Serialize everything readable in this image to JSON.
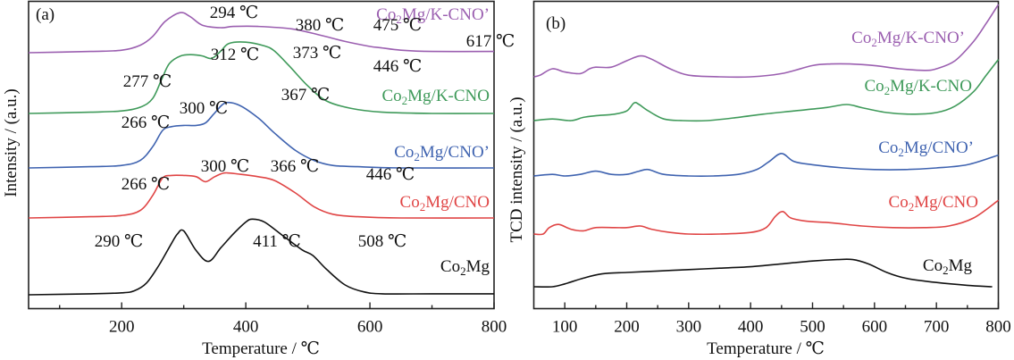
{
  "chart_data": [
    {
      "type": "line",
      "panel_label": "(a)",
      "title": "",
      "xlabel": "Temperature / ℃",
      "ylabel": "Intensity / (a.u.)",
      "xlim": [
        50,
        800
      ],
      "x_ticks": [
        200,
        400,
        600,
        800
      ],
      "x_minor_ticks": [
        100,
        300,
        500,
        700
      ],
      "y_ticks": [],
      "grid": false,
      "offset_stacked": true,
      "series": [
        {
          "name": "Co₂Mg/K-CNO’",
          "label_main": "Co",
          "label_sub": "2",
          "label_rest": "Mg/K-CNO’",
          "color": "#9b5fb0",
          "x": [
            50,
            150,
            200,
            230,
            250,
            270,
            294,
            310,
            330,
            360,
            380,
            420,
            475,
            520,
            560,
            600,
            617,
            650,
            700,
            800
          ],
          "y": [
            0.0,
            0.01,
            0.02,
            0.06,
            0.13,
            0.25,
            0.32,
            0.29,
            0.22,
            0.2,
            0.21,
            0.21,
            0.19,
            0.14,
            0.09,
            0.05,
            0.04,
            0.02,
            0.01,
            0.01
          ]
        },
        {
          "name": "Co₂Mg/K-CNO",
          "label_main": "Co",
          "label_sub": "2",
          "label_rest": "Mg/K-CNO",
          "color": "#3f9a5a",
          "x": [
            50,
            150,
            200,
            230,
            250,
            265,
            277,
            295,
            312,
            330,
            345,
            360,
            373,
            400,
            430,
            446,
            470,
            500,
            530,
            570,
            620,
            700,
            800
          ],
          "y": [
            0.0,
            0.01,
            0.02,
            0.05,
            0.12,
            0.28,
            0.4,
            0.46,
            0.47,
            0.46,
            0.44,
            0.5,
            0.56,
            0.57,
            0.54,
            0.5,
            0.38,
            0.22,
            0.1,
            0.04,
            0.01,
            0.0,
            0.0
          ]
        },
        {
          "name": "Co₂Mg/CNO’",
          "label_main": "Co",
          "label_sub": "2",
          "label_rest": "Mg/CNO’",
          "color": "#3f63b0",
          "x": [
            50,
            150,
            200,
            230,
            250,
            266,
            280,
            300,
            320,
            335,
            350,
            367,
            390,
            420,
            446,
            480,
            510,
            540,
            580,
            650,
            800
          ],
          "y": [
            0.0,
            0.01,
            0.02,
            0.06,
            0.17,
            0.3,
            0.33,
            0.34,
            0.34,
            0.36,
            0.44,
            0.52,
            0.5,
            0.4,
            0.28,
            0.14,
            0.06,
            0.02,
            0.01,
            0.0,
            0.0
          ]
        },
        {
          "name": "Co₂Mg/CNO",
          "label_main": "Co",
          "label_sub": "2",
          "label_rest": "Mg/CNO",
          "color": "#e04545",
          "x": [
            50,
            150,
            200,
            230,
            250,
            266,
            280,
            300,
            320,
            335,
            350,
            366,
            390,
            420,
            446,
            480,
            510,
            540,
            580,
            650,
            800
          ],
          "y": [
            0.0,
            0.01,
            0.02,
            0.06,
            0.18,
            0.32,
            0.34,
            0.34,
            0.33,
            0.29,
            0.33,
            0.36,
            0.35,
            0.33,
            0.3,
            0.2,
            0.09,
            0.03,
            0.01,
            0.0,
            0.0
          ]
        },
        {
          "name": "Co₂Mg",
          "label_main": "Co",
          "label_sub": "2",
          "label_rest": "Mg",
          "color": "#111111",
          "x": [
            50,
            150,
            200,
            220,
            240,
            260,
            280,
            290,
            300,
            320,
            340,
            360,
            380,
            400,
            411,
            430,
            460,
            490,
            508,
            530,
            560,
            590,
            620,
            700,
            800
          ],
          "y": [
            0.0,
            0.01,
            0.02,
            0.04,
            0.12,
            0.3,
            0.52,
            0.62,
            0.65,
            0.45,
            0.34,
            0.48,
            0.62,
            0.74,
            0.77,
            0.74,
            0.6,
            0.46,
            0.4,
            0.26,
            0.1,
            0.03,
            0.01,
            0.01,
            0.01
          ]
        }
      ],
      "annotations": [
        {
          "series": "Co₂Mg/K-CNO’",
          "text": "294 ℃"
        },
        {
          "series": "Co₂Mg/K-CNO’",
          "text": "380 ℃"
        },
        {
          "series": "Co₂Mg/K-CNO’",
          "text": "475 ℃"
        },
        {
          "series": "Co₂Mg/K-CNO’",
          "text": "617 ℃"
        },
        {
          "series": "Co₂Mg/K-CNO",
          "text": "277 ℃"
        },
        {
          "series": "Co₂Mg/K-CNO",
          "text": "312 ℃"
        },
        {
          "series": "Co₂Mg/K-CNO",
          "text": "373 ℃"
        },
        {
          "series": "Co₂Mg/K-CNO",
          "text": "446 ℃"
        },
        {
          "series": "Co₂Mg/CNO’",
          "text": "266 ℃"
        },
        {
          "series": "Co₂Mg/CNO’",
          "text": "300 ℃"
        },
        {
          "series": "Co₂Mg/CNO’",
          "text": "367 ℃"
        },
        {
          "series": "Co₂Mg/CNO",
          "text": "266 ℃"
        },
        {
          "series": "Co₂Mg/CNO",
          "text": "300 ℃"
        },
        {
          "series": "Co₂Mg/CNO",
          "text": "366 ℃"
        },
        {
          "series": "Co₂Mg/CNO",
          "text": "446 ℃"
        },
        {
          "series": "Co₂Mg",
          "text": "290 ℃"
        },
        {
          "series": "Co₂Mg",
          "text": "411 ℃"
        },
        {
          "series": "Co₂Mg",
          "text": "508 ℃"
        }
      ]
    },
    {
      "type": "line",
      "panel_label": "(b)",
      "title": "",
      "xlabel": "Temperature / ℃",
      "ylabel": "TCD intensity / (a.u.)",
      "xlim": [
        50,
        800
      ],
      "x_ticks": [
        100,
        200,
        300,
        400,
        500,
        600,
        700,
        800
      ],
      "x_minor_ticks": [
        150,
        250,
        350,
        450,
        550,
        650,
        750
      ],
      "y_ticks": [],
      "grid": false,
      "offset_stacked": true,
      "series": [
        {
          "name": "Co₂Mg/K-CNO’",
          "label_main": "Co",
          "label_sub": "2",
          "label_rest": "Mg/K-CNO’",
          "color": "#9b5fb0",
          "x": [
            50,
            60,
            80,
            100,
            125,
            140,
            150,
            175,
            200,
            222,
            240,
            270,
            300,
            350,
            400,
            450,
            500,
            530,
            560,
            600,
            640,
            680,
            700,
            730,
            760,
            780,
            800
          ],
          "y": [
            0.0,
            0.01,
            0.05,
            0.03,
            0.02,
            0.05,
            0.06,
            0.06,
            0.1,
            0.13,
            0.11,
            0.05,
            0.01,
            0.0,
            0.0,
            0.02,
            0.07,
            0.08,
            0.08,
            0.07,
            0.05,
            0.04,
            0.05,
            0.1,
            0.22,
            0.33,
            0.45
          ]
        },
        {
          "name": "Co₂Mg/K-CNO",
          "label_main": "Co",
          "label_sub": "2",
          "label_rest": "Mg/K-CNO",
          "color": "#3f9a5a",
          "x": [
            50,
            80,
            110,
            130,
            150,
            180,
            200,
            212,
            220,
            235,
            260,
            290,
            330,
            380,
            420,
            470,
            520,
            555,
            580,
            620,
            660,
            700,
            730,
            760,
            780,
            800
          ],
          "y": [
            0.0,
            0.01,
            0.0,
            0.02,
            0.03,
            0.04,
            0.06,
            0.11,
            0.1,
            0.06,
            0.01,
            0.0,
            0.0,
            0.02,
            0.04,
            0.06,
            0.08,
            0.1,
            0.08,
            0.05,
            0.04,
            0.05,
            0.09,
            0.18,
            0.28,
            0.38
          ]
        },
        {
          "name": "Co₂Mg/CNO’",
          "label_main": "Co",
          "label_sub": "2",
          "label_rest": "Mg/CNO’",
          "color": "#3f63b0",
          "x": [
            50,
            80,
            100,
            125,
            150,
            175,
            200,
            220,
            235,
            260,
            300,
            340,
            380,
            410,
            430,
            450,
            470,
            500,
            550,
            600,
            650,
            700,
            750,
            800
          ],
          "y": [
            0.0,
            0.01,
            0.0,
            0.01,
            0.03,
            0.01,
            0.01,
            0.03,
            0.04,
            0.01,
            0.0,
            0.0,
            0.01,
            0.04,
            0.09,
            0.14,
            0.09,
            0.07,
            0.05,
            0.04,
            0.04,
            0.05,
            0.07,
            0.13
          ]
        },
        {
          "name": "Co₂Mg/CNO",
          "label_main": "Co",
          "label_sub": "2",
          "label_rest": "Mg/CNO",
          "color": "#e04545",
          "x": [
            50,
            65,
            75,
            90,
            110,
            130,
            150,
            180,
            200,
            222,
            240,
            270,
            300,
            350,
            400,
            425,
            440,
            452,
            465,
            490,
            530,
            580,
            630,
            680,
            720,
            760,
            800
          ],
          "y": [
            0.0,
            0.0,
            0.04,
            0.06,
            0.03,
            0.02,
            0.04,
            0.04,
            0.04,
            0.05,
            0.03,
            0.01,
            0.0,
            0.0,
            0.01,
            0.04,
            0.11,
            0.14,
            0.1,
            0.08,
            0.07,
            0.05,
            0.04,
            0.04,
            0.05,
            0.1,
            0.21
          ]
        },
        {
          "name": "Co₂Mg",
          "label_main": "Co",
          "label_sub": "2",
          "label_rest": "Mg",
          "color": "#111111",
          "x": [
            50,
            80,
            100,
            130,
            160,
            200,
            250,
            300,
            350,
            400,
            450,
            500,
            540,
            565,
            590,
            620,
            650,
            700,
            750,
            790
          ],
          "y": [
            0.0,
            0.0,
            0.02,
            0.06,
            0.09,
            0.1,
            0.11,
            0.12,
            0.13,
            0.14,
            0.16,
            0.18,
            0.19,
            0.19,
            0.16,
            0.1,
            0.06,
            0.03,
            0.01,
            0.0
          ]
        }
      ],
      "annotations": []
    }
  ]
}
